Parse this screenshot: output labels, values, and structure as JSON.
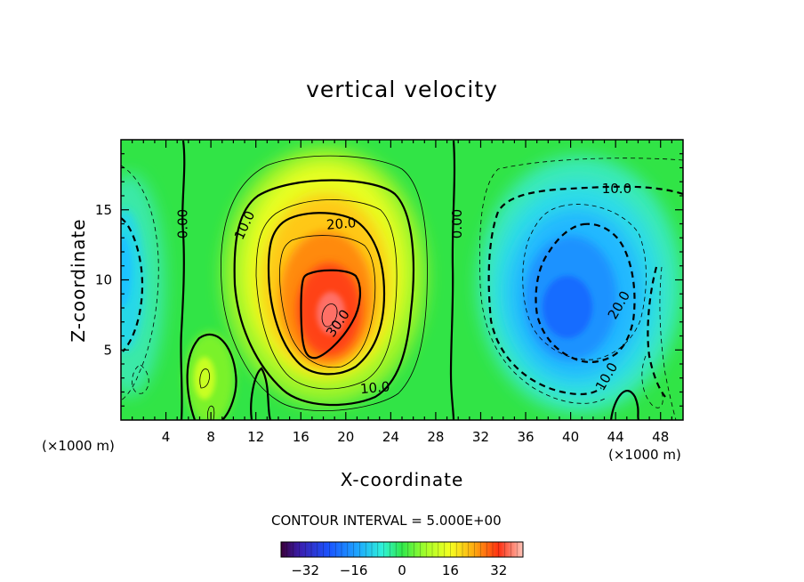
{
  "chart_data": {
    "type": "heatmap",
    "subtype": "filled-contour",
    "title": "vertical velocity",
    "xlabel": "X-coordinate",
    "ylabel": "Z-coordinate",
    "x_unit_left": "(×1000 m)",
    "x_unit_right": "(×1000 m)",
    "xlim": [
      0,
      50
    ],
    "ylim": [
      0,
      20
    ],
    "x_ticks": [
      4,
      8,
      12,
      16,
      20,
      24,
      28,
      32,
      36,
      40,
      44,
      48
    ],
    "y_ticks": [
      5,
      10,
      15
    ],
    "contour_interval_label": "CONTOUR INTERVAL = 5.000E+00",
    "contour_interval": 5.0,
    "colorbar": {
      "range": [
        -40,
        40
      ],
      "tick_values": [
        -32,
        -16,
        0,
        16,
        32
      ],
      "tick_labels": [
        "−32",
        "−16",
        "0",
        "16",
        "32"
      ]
    },
    "contour_labels": [
      {
        "text": "0.00",
        "x": 5.5,
        "z": 14.0,
        "rotation": -90
      },
      {
        "text": "10.0",
        "x": 11.0,
        "z": 13.9,
        "rotation": -65
      },
      {
        "text": "20.0",
        "x": 19.6,
        "z": 14.0,
        "rotation": -5
      },
      {
        "text": "30.0",
        "x": 19.3,
        "z": 6.9,
        "rotation": -55
      },
      {
        "text": "10.0",
        "x": 22.6,
        "z": 2.3,
        "rotation": -5
      },
      {
        "text": "0.00",
        "x": 29.9,
        "z": 14.0,
        "rotation": -90
      },
      {
        "text": "10.0",
        "x": 44.1,
        "z": 16.5,
        "rotation": 0
      },
      {
        "text": "20.0",
        "x": 44.3,
        "z": 8.2,
        "rotation": -60
      },
      {
        "text": "10.0",
        "x": 43.2,
        "z": 3.1,
        "rotation": -60
      }
    ],
    "features": [
      {
        "kind": "updraft maximum",
        "x": 18.5,
        "z": 7.5,
        "value": 35
      },
      {
        "kind": "downdraft minimum",
        "x": 39.5,
        "z": 8.0,
        "value": -22
      },
      {
        "kind": "weak downdraft",
        "x": 1.5,
        "z": 10.0,
        "value": -10
      },
      {
        "kind": "weak updraft",
        "x": 7.5,
        "z": 4.0,
        "value": 8
      }
    ]
  }
}
